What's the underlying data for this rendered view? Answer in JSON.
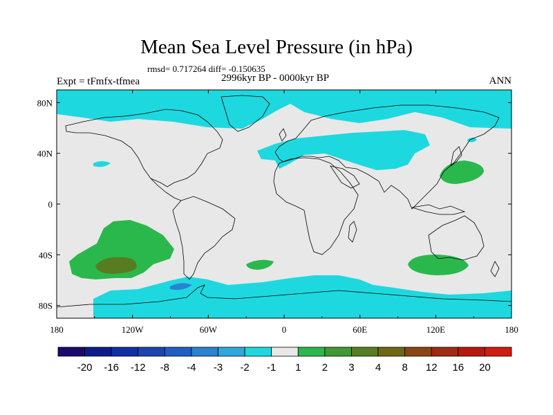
{
  "title": "Mean Sea Level Pressure (in hPa)",
  "stats": "rmsd= 0.717264 diff= -0.150635",
  "experiment": "Expt = tFmfx-tfmea",
  "period": "2996kyr BP - 0000kyr BP",
  "season": "ANN",
  "x_ticks": [
    "180",
    "120W",
    "60W",
    "0",
    "60E",
    "120E",
    "180"
  ],
  "y_ticks": [
    "80N",
    "40N",
    "0",
    "40S",
    "80S"
  ],
  "colorbar": {
    "labels": [
      "-20",
      "-16",
      "-12",
      "-8",
      "-4",
      "-3",
      "-2",
      "-1",
      "1",
      "2",
      "3",
      "4",
      "8",
      "12",
      "16",
      "20"
    ],
    "colors": [
      "#1a0a6e",
      "#0d1c8a",
      "#102fa3",
      "#1b44b3",
      "#1f5fc4",
      "#2a83cf",
      "#2ea7dc",
      "#1ed8df",
      "#e8e8e8",
      "#2ab84d",
      "#3f9a34",
      "#587c20",
      "#6e6712",
      "#8a4610",
      "#9f2c10",
      "#b7180e",
      "#cf1d10"
    ]
  },
  "colors": {
    "ocean_neutral": "#e8e8e8",
    "cyan": "#1ed8df",
    "blue": "#2a83cf",
    "green": "#2ab84d",
    "olive": "#587c20"
  }
}
